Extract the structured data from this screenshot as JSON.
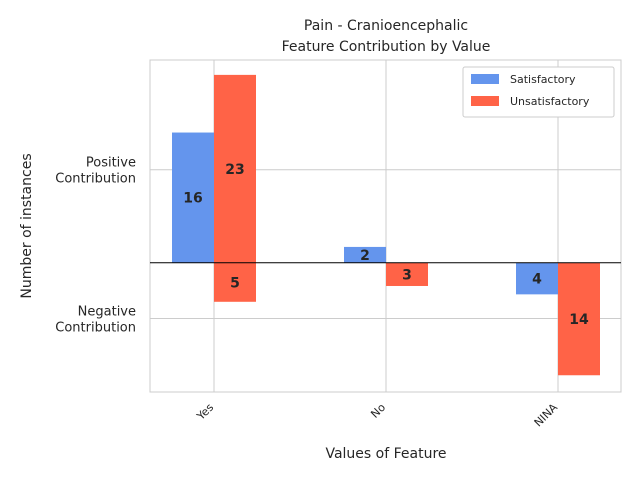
{
  "chart_data": {
    "type": "bar",
    "title": "Pain - Cranioencephalic",
    "subtitle": "Feature Contribution by Value",
    "xlabel": "Values of Feature",
    "ylabel": "Number of instances",
    "categories": [
      "Yes",
      "No",
      "NINA"
    ],
    "y_tick_labels": [
      {
        "value": 10,
        "lines": [
          "Positive",
          "Contribution"
        ]
      },
      {
        "value": -6,
        "lines": [
          "Negative",
          "Contribution"
        ]
      }
    ],
    "series": [
      {
        "name": "Satisfactory",
        "color": "#6495ED",
        "values": [
          14,
          1.7,
          -3.4
        ],
        "labels": [
          "16",
          "2",
          "4"
        ]
      },
      {
        "name": "Unsatisfactory",
        "color": "#FF6347",
        "values": [
          20.2,
          -2.5,
          -12.1
        ],
        "labels": [
          "23",
          "3",
          "14"
        ],
        "extra_labels": [
          {
            "category": "Yes",
            "value": -4.2,
            "label": "5"
          }
        ]
      }
    ],
    "extra_bars": [
      {
        "series": "Unsatisfactory",
        "category": "Yes",
        "value": -4.2
      }
    ],
    "ylim": [
      -13.9,
      21.8
    ],
    "grid": true,
    "legend_position": "top-right"
  }
}
